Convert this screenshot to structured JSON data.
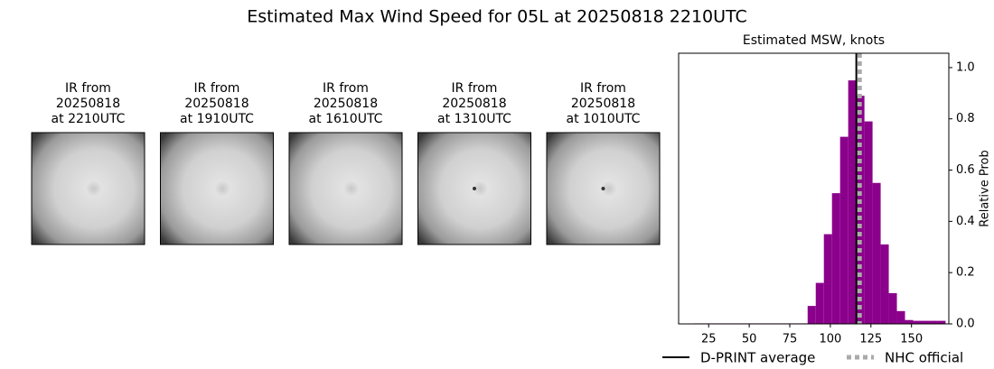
{
  "title": "Estimated Max Wind Speed for 05L at 20250818 2210UTC",
  "panels": [
    {
      "lines": [
        "IR from",
        "20250818",
        "at 2210UTC"
      ]
    },
    {
      "lines": [
        "IR from",
        "20250818",
        "at 1910UTC"
      ]
    },
    {
      "lines": [
        "IR from",
        "20250818",
        "at 1610UTC"
      ]
    },
    {
      "lines": [
        "IR from",
        "20250818",
        "at 1310UTC"
      ]
    },
    {
      "lines": [
        "IR from",
        "20250818",
        "at 1010UTC"
      ]
    }
  ],
  "chart_data": {
    "type": "histogram",
    "title": "Estimated MSW, knots",
    "y2label": "Relative Prob",
    "color": "#8b008b",
    "bins": [
      16,
      21,
      26,
      31,
      36,
      41,
      46,
      51,
      56,
      61,
      66,
      71,
      76,
      81,
      86,
      91,
      96,
      101,
      106,
      111,
      116,
      121,
      126,
      131,
      136,
      141,
      146,
      151,
      156,
      161,
      166,
      171
    ],
    "values": [
      0.002,
      0.002,
      0.002,
      0.002,
      0.002,
      0.002,
      0.002,
      0.002,
      0.002,
      0.002,
      0.002,
      0.002,
      0.002,
      0.002,
      0.07,
      0.16,
      0.35,
      0.51,
      0.73,
      0.95,
      0.89,
      0.79,
      0.55,
      0.31,
      0.12,
      0.05,
      0.015,
      0.012,
      0.012,
      0.012,
      0.012
    ],
    "xlim": [
      6.5,
      173
    ],
    "xticks": [
      25,
      50,
      75,
      100,
      125,
      150
    ],
    "ylim": [
      0,
      1.056
    ],
    "yticks": [
      {
        "value": 0,
        "label": "0.0"
      },
      {
        "value": 0.2,
        "label": "0.2"
      },
      {
        "value": 0.4,
        "label": "0.4"
      },
      {
        "value": 0.6,
        "label": "0.6"
      },
      {
        "value": 0.8,
        "label": "0.8"
      },
      {
        "value": 1,
        "label": "1.0"
      }
    ],
    "lines": [
      {
        "name": "D-PRINT average",
        "value": 116,
        "color": "#000000",
        "style": "solid"
      },
      {
        "name": "NHC official",
        "value": 118,
        "color": "#aaaaaa",
        "style": "dotted"
      }
    ]
  }
}
